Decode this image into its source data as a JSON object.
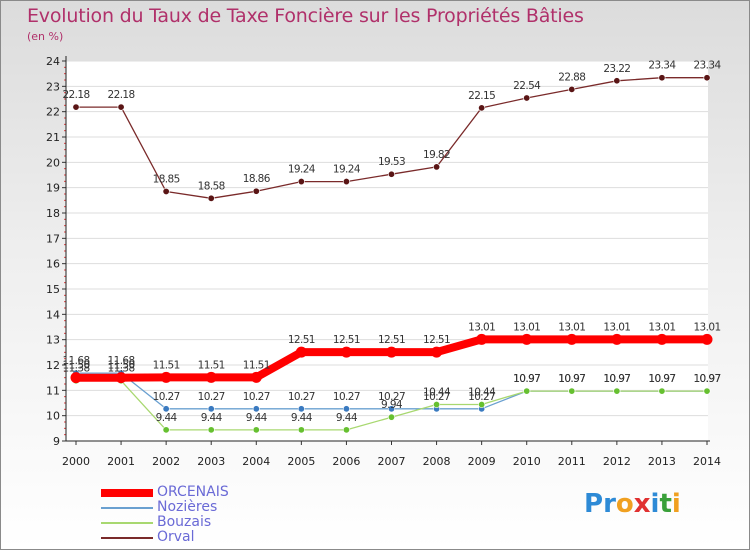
{
  "title": "Evolution du Taux de Taxe Foncière sur les Propriétés Bâties",
  "subtitle": "(en %)",
  "logo": {
    "text": "Proxiti",
    "letters": [
      {
        "ch": "P",
        "color": "#2d8ad6"
      },
      {
        "ch": "r",
        "color": "#2d8ad6"
      },
      {
        "ch": "o",
        "color": "#f0a020"
      },
      {
        "ch": "x",
        "color": "#e03030"
      },
      {
        "ch": "i",
        "color": "#2d8ad6"
      },
      {
        "ch": "t",
        "color": "#3aa03a"
      },
      {
        "ch": "i",
        "color": "#f0a020"
      }
    ]
  },
  "chart_data": {
    "type": "line",
    "title": "Evolution du Taux de Taxe Foncière sur les Propriétés Bâties",
    "ylabel": "(en %)",
    "xlabel": "",
    "ylim": [
      9,
      24
    ],
    "yticks": [
      9,
      10,
      11,
      12,
      13,
      14,
      15,
      16,
      17,
      18,
      19,
      20,
      21,
      22,
      23,
      24
    ],
    "grid": true,
    "legend_position": "bottom-left",
    "x": [
      "2000",
      "2001",
      "2002",
      "2003",
      "2004",
      "2005",
      "2006",
      "2007",
      "2008",
      "2009",
      "2010",
      "2011",
      "2012",
      "2013",
      "2014"
    ],
    "series": [
      {
        "name": "ORCENAIS",
        "color": "#ff0000",
        "marker": "#ff0000",
        "values": [
          11.5,
          11.5,
          11.51,
          11.51,
          11.51,
          12.51,
          12.51,
          12.51,
          12.51,
          13.01,
          13.01,
          13.01,
          13.01,
          13.01,
          13.01
        ],
        "labels": [
          "11.50",
          "11.50",
          "11.51",
          "11.51",
          "11.51",
          "12.51",
          "12.51",
          "12.51",
          "12.51",
          "13.01",
          "13.01",
          "13.01",
          "13.01",
          "13.01",
          "13.01"
        ]
      },
      {
        "name": "Nozières",
        "color": "#6aa0d0",
        "marker": "#3a7ac0",
        "values": [
          11.68,
          11.68,
          10.27,
          10.27,
          10.27,
          10.27,
          10.27,
          10.27,
          10.27,
          10.27,
          10.97,
          10.97,
          10.97,
          10.97,
          10.97
        ],
        "labels": [
          "11.68",
          "11.68",
          "10.27",
          "10.27",
          "10.27",
          "10.27",
          "10.27",
          "10.27",
          "10.27",
          "10.27",
          "10.97",
          "10.97",
          "10.97",
          "10.97",
          "10.97"
        ]
      },
      {
        "name": "Bouzais",
        "color": "#a8d870",
        "marker": "#66c030",
        "values": [
          11.38,
          11.38,
          9.44,
          9.44,
          9.44,
          9.44,
          9.44,
          9.94,
          10.44,
          10.44,
          10.97,
          10.97,
          10.97,
          10.97,
          10.97
        ],
        "labels": [
          "11.38",
          "11.38",
          "9.44",
          "9.44",
          "9.44",
          "9.44",
          "9.44",
          "9.94",
          "10.44",
          "10.44",
          "10.97",
          "10.97",
          "10.97",
          "10.97",
          "10.97"
        ]
      },
      {
        "name": "Orval",
        "color": "#7a2a2a",
        "marker": "#5a1515",
        "values": [
          22.18,
          22.18,
          18.85,
          18.58,
          18.86,
          19.24,
          19.24,
          19.53,
          19.82,
          22.15,
          22.54,
          22.88,
          23.22,
          23.34,
          23.34
        ],
        "labels": [
          "22.18",
          "22.18",
          "18.85",
          "18.58",
          "18.86",
          "19.24",
          "19.24",
          "19.53",
          "19.82",
          "22.15",
          "22.54",
          "22.88",
          "23.22",
          "23.34",
          "23.34"
        ]
      }
    ]
  }
}
